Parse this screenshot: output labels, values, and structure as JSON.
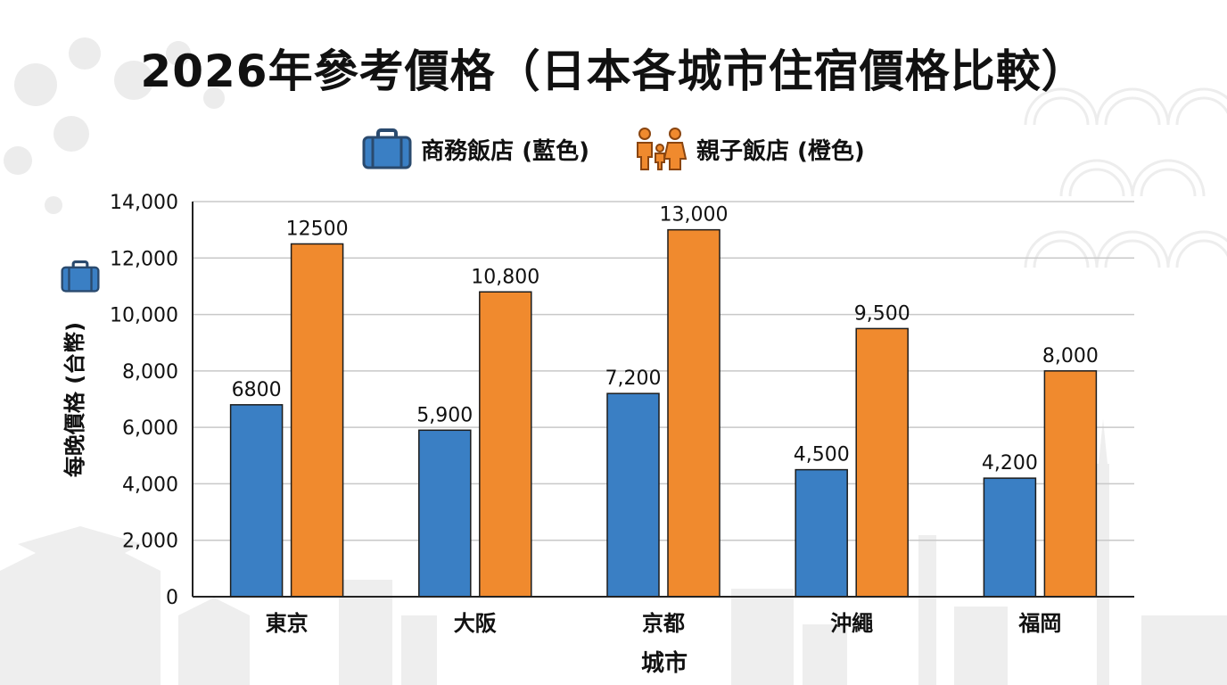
{
  "title": "2026年參考價格（日本各城市住宿價格比較）",
  "legend": [
    {
      "label": "商務飯店 (藍色)",
      "icon": "briefcase-icon",
      "color": "#3a7fc4"
    },
    {
      "label": "親子飯店 (橙色)",
      "icon": "family-icon",
      "color": "#f08a2e"
    }
  ],
  "chart_data": {
    "type": "bar",
    "categories": [
      "東京",
      "大阪",
      "京都",
      "沖繩",
      "福岡"
    ],
    "series": [
      {
        "values": [
          6800,
          5900,
          7200,
          4500,
          4200
        ],
        "labels": [
          "6800",
          "5,900",
          "7,200",
          "4,500",
          "4,200"
        ],
        "color": "#3a7fc4"
      },
      {
        "values": [
          12500,
          10800,
          13000,
          9500,
          8000
        ],
        "labels": [
          "12500",
          "10,800",
          "13,000",
          "9,500",
          "8,000"
        ],
        "color": "#f08a2e"
      }
    ],
    "ylim": [
      0,
      14000
    ],
    "yticks": [
      0,
      2000,
      4000,
      6000,
      8000,
      10000,
      12000,
      14000
    ],
    "ytick_labels": [
      "0",
      "2,000",
      "4,000",
      "6,000",
      "8,000",
      "10,000",
      "12,000",
      "14,000"
    ],
    "xlabel": "城市",
    "ylabel": "每晚價格 (台幣)",
    "grid": true,
    "legend_position": "top-center"
  }
}
